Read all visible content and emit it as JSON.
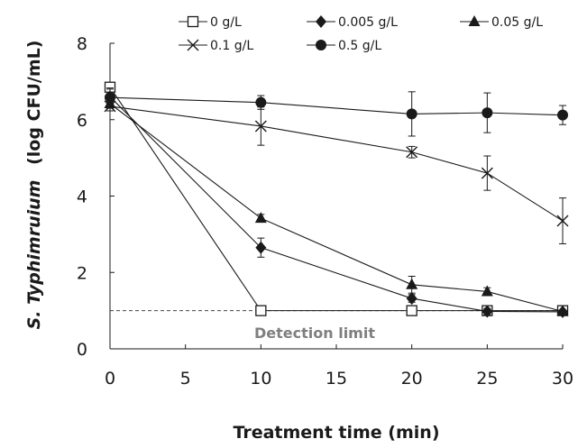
{
  "chart_data": {
    "type": "line",
    "xlabel": "Treatment time (min)",
    "ylabel_italic": "S. Typhimruium",
    "ylabel_rest": "(log CFU/mL)",
    "xlim": [
      0,
      30
    ],
    "ylim": [
      0,
      8
    ],
    "xticks": [
      "0",
      "5",
      "10",
      "15",
      "20",
      "25",
      "30"
    ],
    "yticks": [
      "0",
      "2",
      "4",
      "6",
      "8"
    ],
    "grid": false,
    "legend_position": "top",
    "detection_limit": {
      "value": 1.0,
      "label": "Detection limit"
    },
    "series": [
      {
        "name": "0 g/L",
        "marker": "open-square",
        "color": "#1a1a1a",
        "x": [
          0,
          10,
          20,
          25,
          30
        ],
        "y": [
          6.85,
          1.0,
          1.0,
          1.0,
          1.0
        ],
        "err": [
          0.1,
          0.03,
          0.03,
          0.03,
          0.03
        ]
      },
      {
        "name": "0.005 g/L",
        "marker": "diamond",
        "color": "#1a1a1a",
        "x": [
          0,
          10,
          20,
          25,
          30
        ],
        "y": [
          6.6,
          2.65,
          1.32,
          0.98,
          0.97
        ],
        "err": [
          0.2,
          0.25,
          0.1,
          0.08,
          0.05
        ]
      },
      {
        "name": "0.05 g/L",
        "marker": "triangle",
        "color": "#1a1a1a",
        "x": [
          0,
          10,
          20,
          25,
          30
        ],
        "y": [
          6.42,
          3.42,
          1.68,
          1.5,
          0.98
        ],
        "err": [
          0.12,
          0.1,
          0.22,
          0.1,
          0.05
        ]
      },
      {
        "name": "0.1 g/L",
        "marker": "x",
        "color": "#1a1a1a",
        "x": [
          0,
          10,
          20,
          25,
          30
        ],
        "y": [
          6.35,
          5.83,
          5.15,
          4.6,
          3.35
        ],
        "err": [
          0.12,
          0.5,
          0.15,
          0.45,
          0.6
        ]
      },
      {
        "name": "0.5 g/L",
        "marker": "circle",
        "color": "#1a1a1a",
        "x": [
          0,
          10,
          20,
          25,
          30
        ],
        "y": [
          6.58,
          6.45,
          6.15,
          6.18,
          6.12
        ],
        "err": [
          0.25,
          0.18,
          0.58,
          0.52,
          0.25
        ]
      }
    ]
  }
}
